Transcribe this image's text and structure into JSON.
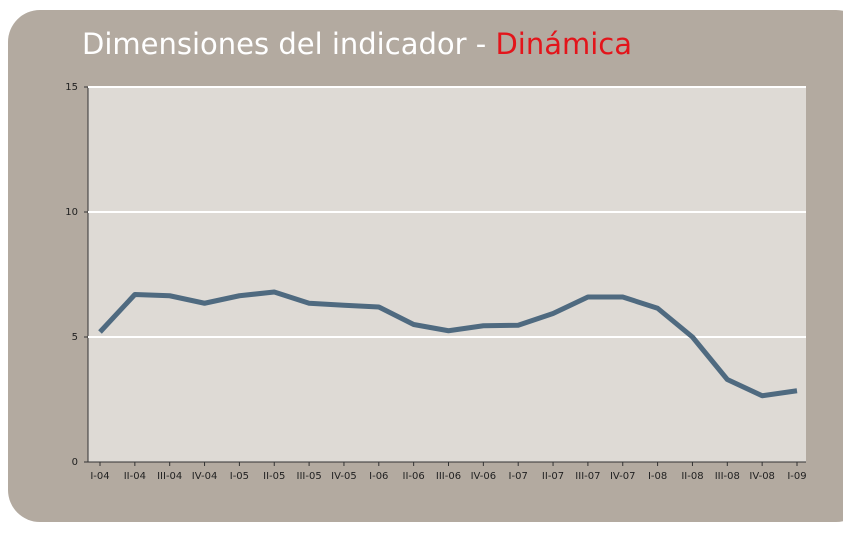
{
  "chart_data": {
    "type": "line",
    "title": "Dimensiones del indicador - ",
    "title_highlight": "Dinámica",
    "categories": [
      "I-04",
      "II-04",
      "III-04",
      "IV-04",
      "I-05",
      "II-05",
      "III-05",
      "IV-05",
      "I-06",
      "II-06",
      "III-06",
      "IV-06",
      "I-07",
      "II-07",
      "III-07",
      "IV-07",
      "I-08",
      "II-08",
      "III-08",
      "IV-08",
      "I-09"
    ],
    "series": [
      {
        "color": "#4f6a80",
        "values": [
          5.2,
          6.7,
          6.65,
          6.35,
          6.65,
          6.8,
          6.35,
          6.27,
          6.2,
          5.5,
          5.25,
          5.45,
          5.47,
          5.94,
          6.6,
          6.6,
          6.15,
          5.0,
          3.3,
          2.65,
          2.85
        ]
      }
    ],
    "ylim": [
      0,
      15
    ],
    "yticks": [
      0,
      5,
      10,
      15
    ],
    "grid": true
  }
}
